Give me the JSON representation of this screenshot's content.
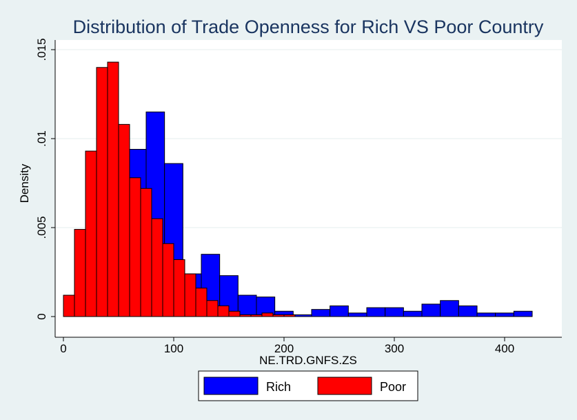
{
  "chart_data": {
    "type": "bar",
    "title": "Distribution of Trade Openness for Rich VS Poor Country",
    "xlabel": "NE.TRD.GNFS.ZS",
    "ylabel": "Density",
    "xlim": [
      -6,
      443
    ],
    "ylim": [
      0,
      0.0151
    ],
    "xticks": [
      0,
      100,
      200,
      300,
      400
    ],
    "xtick_labels": [
      "0",
      "100",
      "200",
      "300",
      "400"
    ],
    "yticks": [
      0,
      0.005,
      0.01,
      0.015
    ],
    "ytick_labels": [
      "0",
      ".005",
      ".01",
      ".015"
    ],
    "grid": true,
    "legend": "bottom",
    "series": [
      {
        "name": "Rich",
        "color": "#0000ff",
        "bin_width": 16.667,
        "x_start": 58.333,
        "values": [
          0.0094,
          0.0115,
          0.0086,
          0.0024,
          0.0035,
          0.0023,
          0.0012,
          0.0011,
          0.0003,
          0.0001,
          0.0004,
          0.0006,
          0.0002,
          0.0005,
          0.0005,
          0.0003,
          0.0007,
          0.0009,
          0.0006,
          0.0002,
          0.0002,
          0.0003
        ]
      },
      {
        "name": "Poor",
        "color": "#ff0000",
        "bin_width": 10,
        "x_start": 0,
        "values": [
          0.0012,
          0.0049,
          0.0093,
          0.014,
          0.0143,
          0.0108,
          0.0078,
          0.0072,
          0.0055,
          0.0041,
          0.0032,
          0.0024,
          0.0016,
          0.0009,
          0.0006,
          0.0003,
          0.0001,
          0.0001,
          0.0002,
          0.0001,
          0.0001
        ]
      }
    ]
  }
}
